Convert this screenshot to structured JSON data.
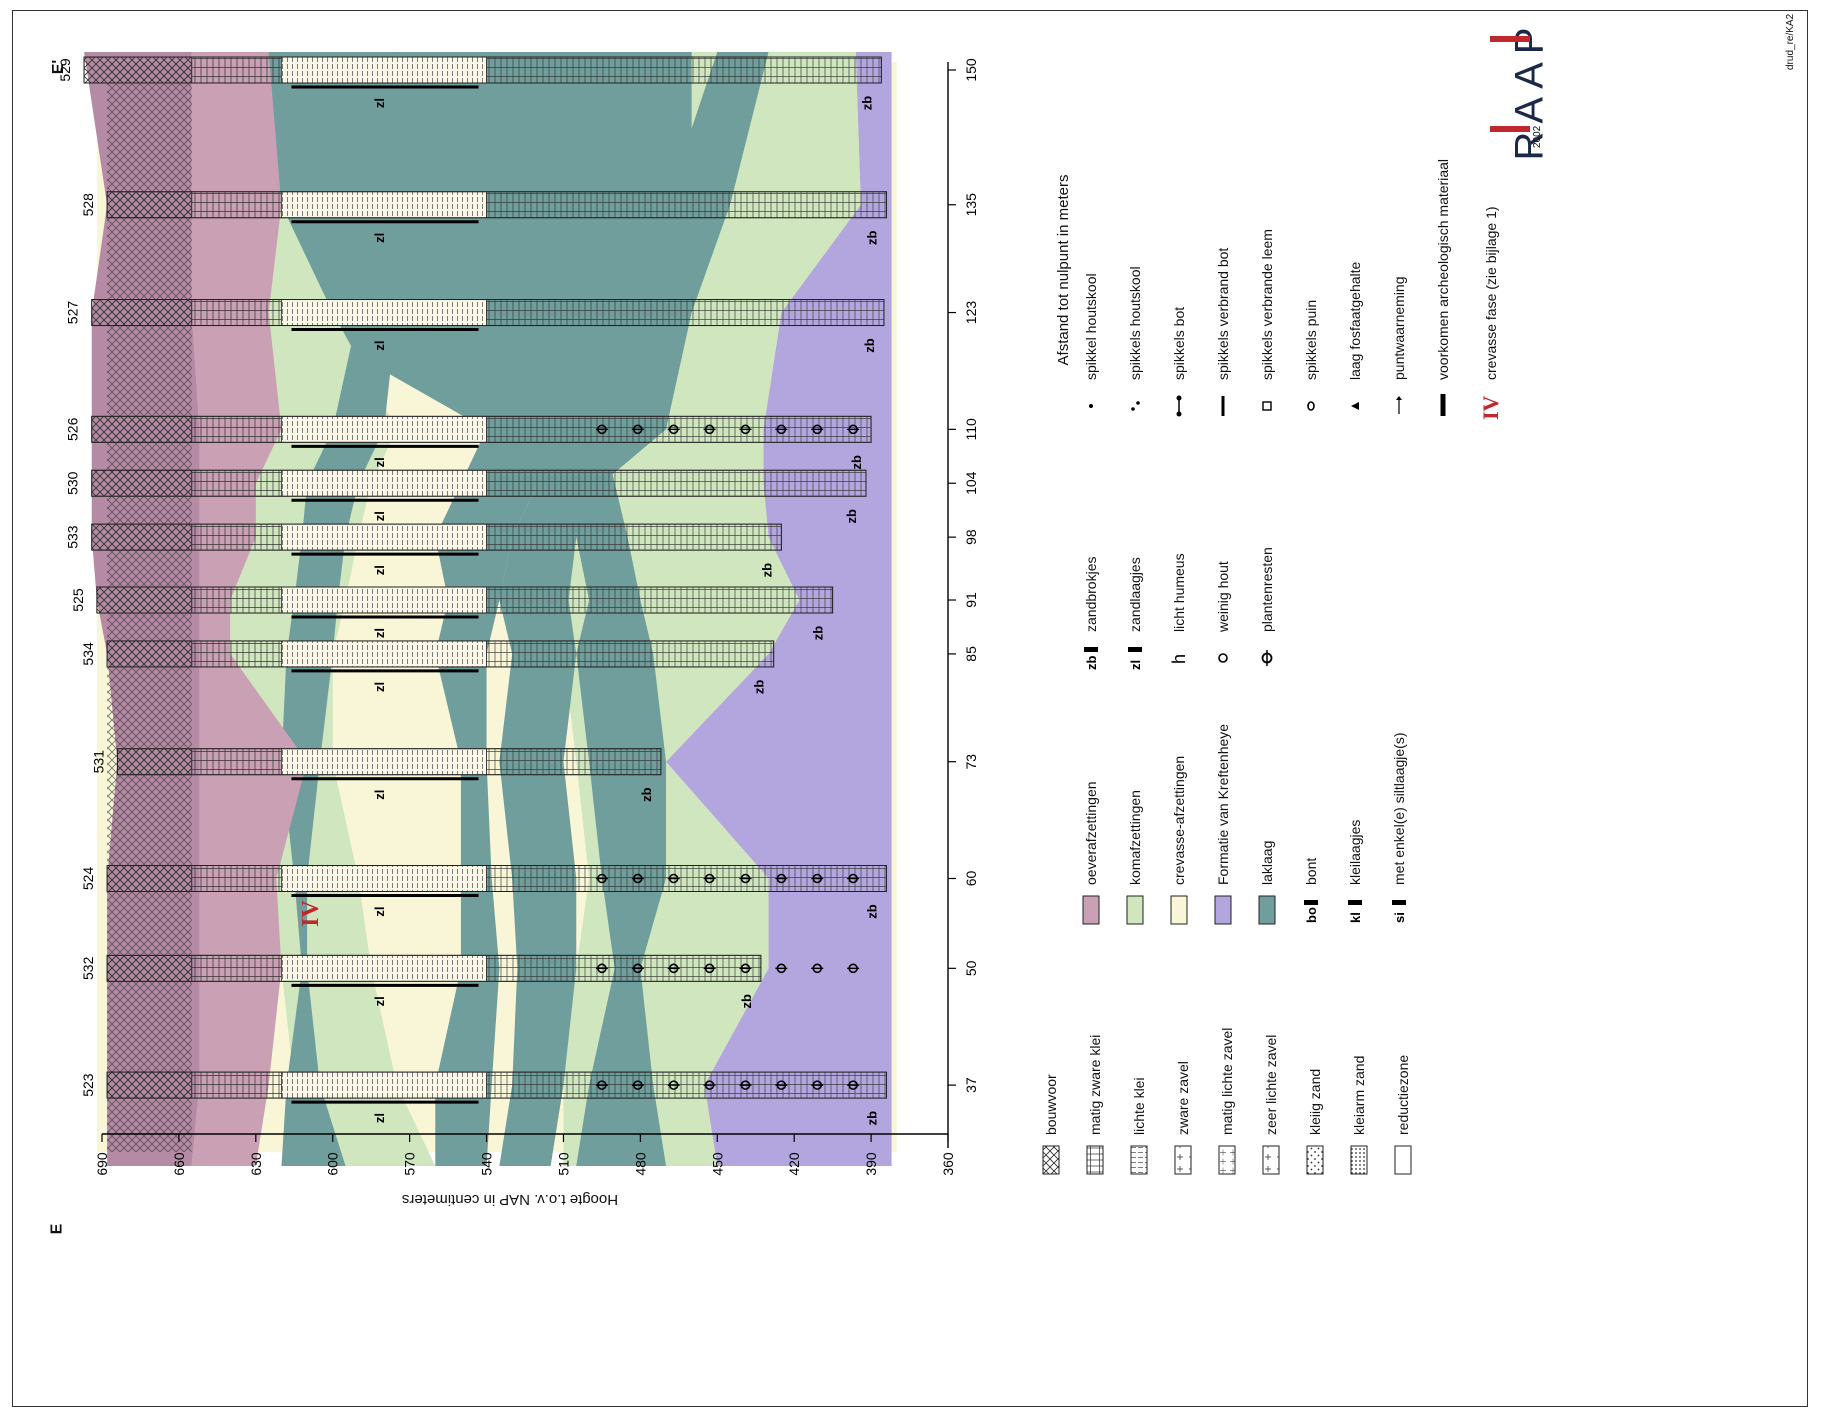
{
  "section": {
    "start_label": "E",
    "end_label": "E'"
  },
  "y_axis": {
    "title": "Hoogte t.o.v. NAP in centimeters",
    "ticks": [
      690,
      660,
      630,
      600,
      570,
      540,
      510,
      480,
      450,
      420,
      390,
      360
    ],
    "min": 360,
    "max": 690
  },
  "x_axis": {
    "title": "Afstand tot nulpunt in meters",
    "ticks": [
      37,
      50,
      60,
      73,
      85,
      91,
      98,
      104,
      110,
      123,
      135,
      150
    ],
    "min": 30,
    "max": 150
  },
  "boreholes": [
    {
      "id": "523",
      "distance": 37,
      "top": 688,
      "bottom": 384
    },
    {
      "id": "532",
      "distance": 50,
      "top": 688,
      "bottom": 433
    },
    {
      "id": "524",
      "distance": 60,
      "top": 688,
      "bottom": 384
    },
    {
      "id": "531",
      "distance": 73,
      "top": 684,
      "bottom": 472
    },
    {
      "id": "534",
      "distance": 85,
      "top": 688,
      "bottom": 428
    },
    {
      "id": "525",
      "distance": 91,
      "top": 692,
      "bottom": 405
    },
    {
      "id": "533",
      "distance": 98,
      "top": 694,
      "bottom": 425
    },
    {
      "id": "530",
      "distance": 104,
      "top": 694,
      "bottom": 392
    },
    {
      "id": "526",
      "distance": 110,
      "top": 694,
      "bottom": 390
    },
    {
      "id": "527",
      "distance": 123,
      "top": 694,
      "bottom": 385
    },
    {
      "id": "528",
      "distance": 135,
      "top": 688,
      "bottom": 384
    },
    {
      "id": "529",
      "distance": 150,
      "top": 697,
      "bottom": 386
    }
  ],
  "annotations": {
    "phase_label": "IV",
    "zl": "zl",
    "zb": "zb",
    "kl": "kl",
    "si": "si",
    "bo": "bo"
  },
  "legend": {
    "lithology": [
      "bouwvoor",
      "matig zware klei",
      "lichte klei",
      "zware zavel",
      "matig lichte zavel",
      "zeer lichte zavel",
      "kleiig zand",
      "kleiarm zand",
      "reductiezone"
    ],
    "deposits": [
      "oeverafzettingen",
      "komafzettingen",
      "crevasse-afzettingen",
      "Formatie van Kreftenheye",
      "laklaag",
      "bont",
      "kleilaagjes",
      "met enkel(e) siltlaagje(s)"
    ],
    "deposit_codes": [
      "bo",
      "kl",
      "si"
    ],
    "structures": [
      "zandbrokjes",
      "zandlaagjes",
      "licht humeus",
      "weinig hout",
      "plantenresten"
    ],
    "structure_codes": [
      "zb",
      "zl"
    ],
    "inclusions": [
      "spikkel houtskool",
      "spikkels houtskool",
      "spikkels bot",
      "spikkels verbrand bot",
      "spikkels verbrande leem",
      "spikkels puin",
      "laag fosfaatgehalte",
      "puntwaarneming",
      "voorkomen archeologisch materiaal"
    ],
    "phase": {
      "symbol": "IV",
      "label": "crevasse fase (zie bijlage 1)"
    }
  },
  "colors": {
    "oever": "#c9a0b4",
    "kom": "#cfe6bf",
    "crevasse": "#f8f6d6",
    "kreftenheye": "#b3a6de",
    "laklaag": "#6f9e9c",
    "bouwvoor": "#b48aa4",
    "phase_red": "#c0282d"
  },
  "logo": {
    "text": "RAAP",
    "year": "2002",
    "code": "drud_re/KA2"
  }
}
